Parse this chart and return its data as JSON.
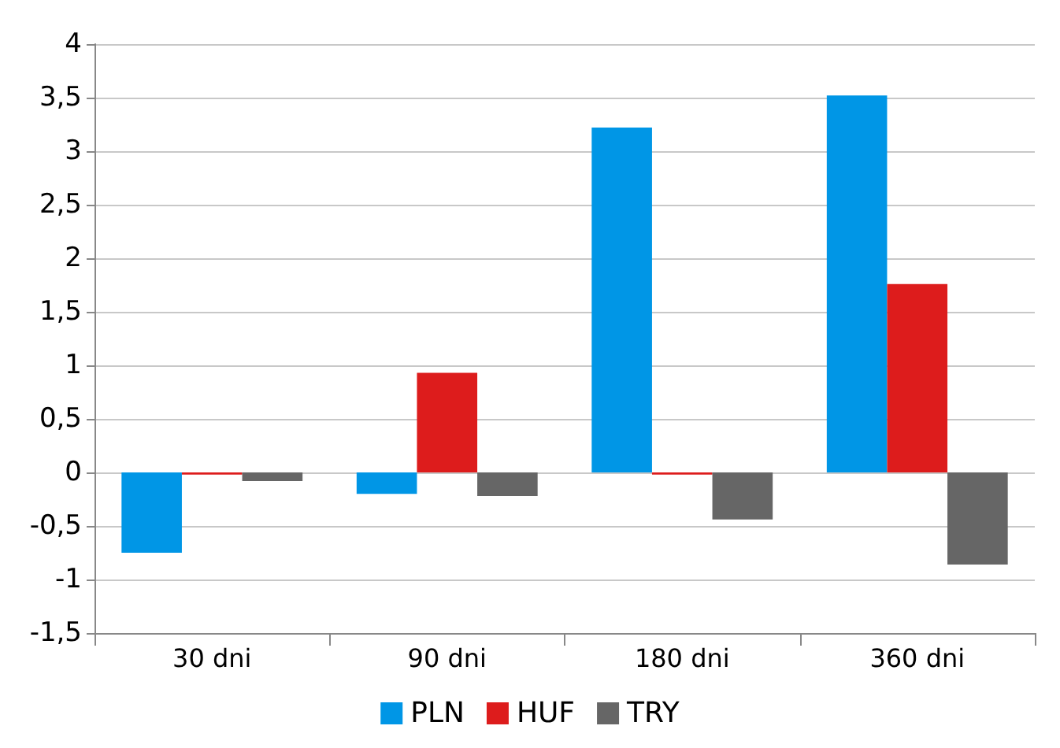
{
  "chart_data": {
    "type": "bar",
    "categories": [
      "30 dni",
      "90 dni",
      "180 dni",
      "360 dni"
    ],
    "series": [
      {
        "name": "PLN",
        "color": "#0096e6",
        "values": [
          -0.75,
          -0.2,
          3.22,
          3.52
        ]
      },
      {
        "name": "HUF",
        "color": "#dd1c1c",
        "values": [
          -0.02,
          0.93,
          -0.02,
          1.76
        ]
      },
      {
        "name": "TRY",
        "color": "#666666",
        "values": [
          -0.08,
          -0.22,
          -0.44,
          -0.86
        ]
      }
    ],
    "ylim": [
      -1.5,
      4
    ],
    "yticks": [
      {
        "value": -1.5,
        "label": "-1,5"
      },
      -1,
      {
        "value": -0.5,
        "label": "-0,5"
      },
      0,
      {
        "value": 0.5,
        "label": "0,5"
      },
      1,
      {
        "value": 1.5,
        "label": "1,5"
      },
      2,
      {
        "value": 2.5,
        "label": "2,5"
      },
      3,
      {
        "value": 3.5,
        "label": "3,5"
      },
      4
    ],
    "grid": "y",
    "legend": "bottom"
  }
}
